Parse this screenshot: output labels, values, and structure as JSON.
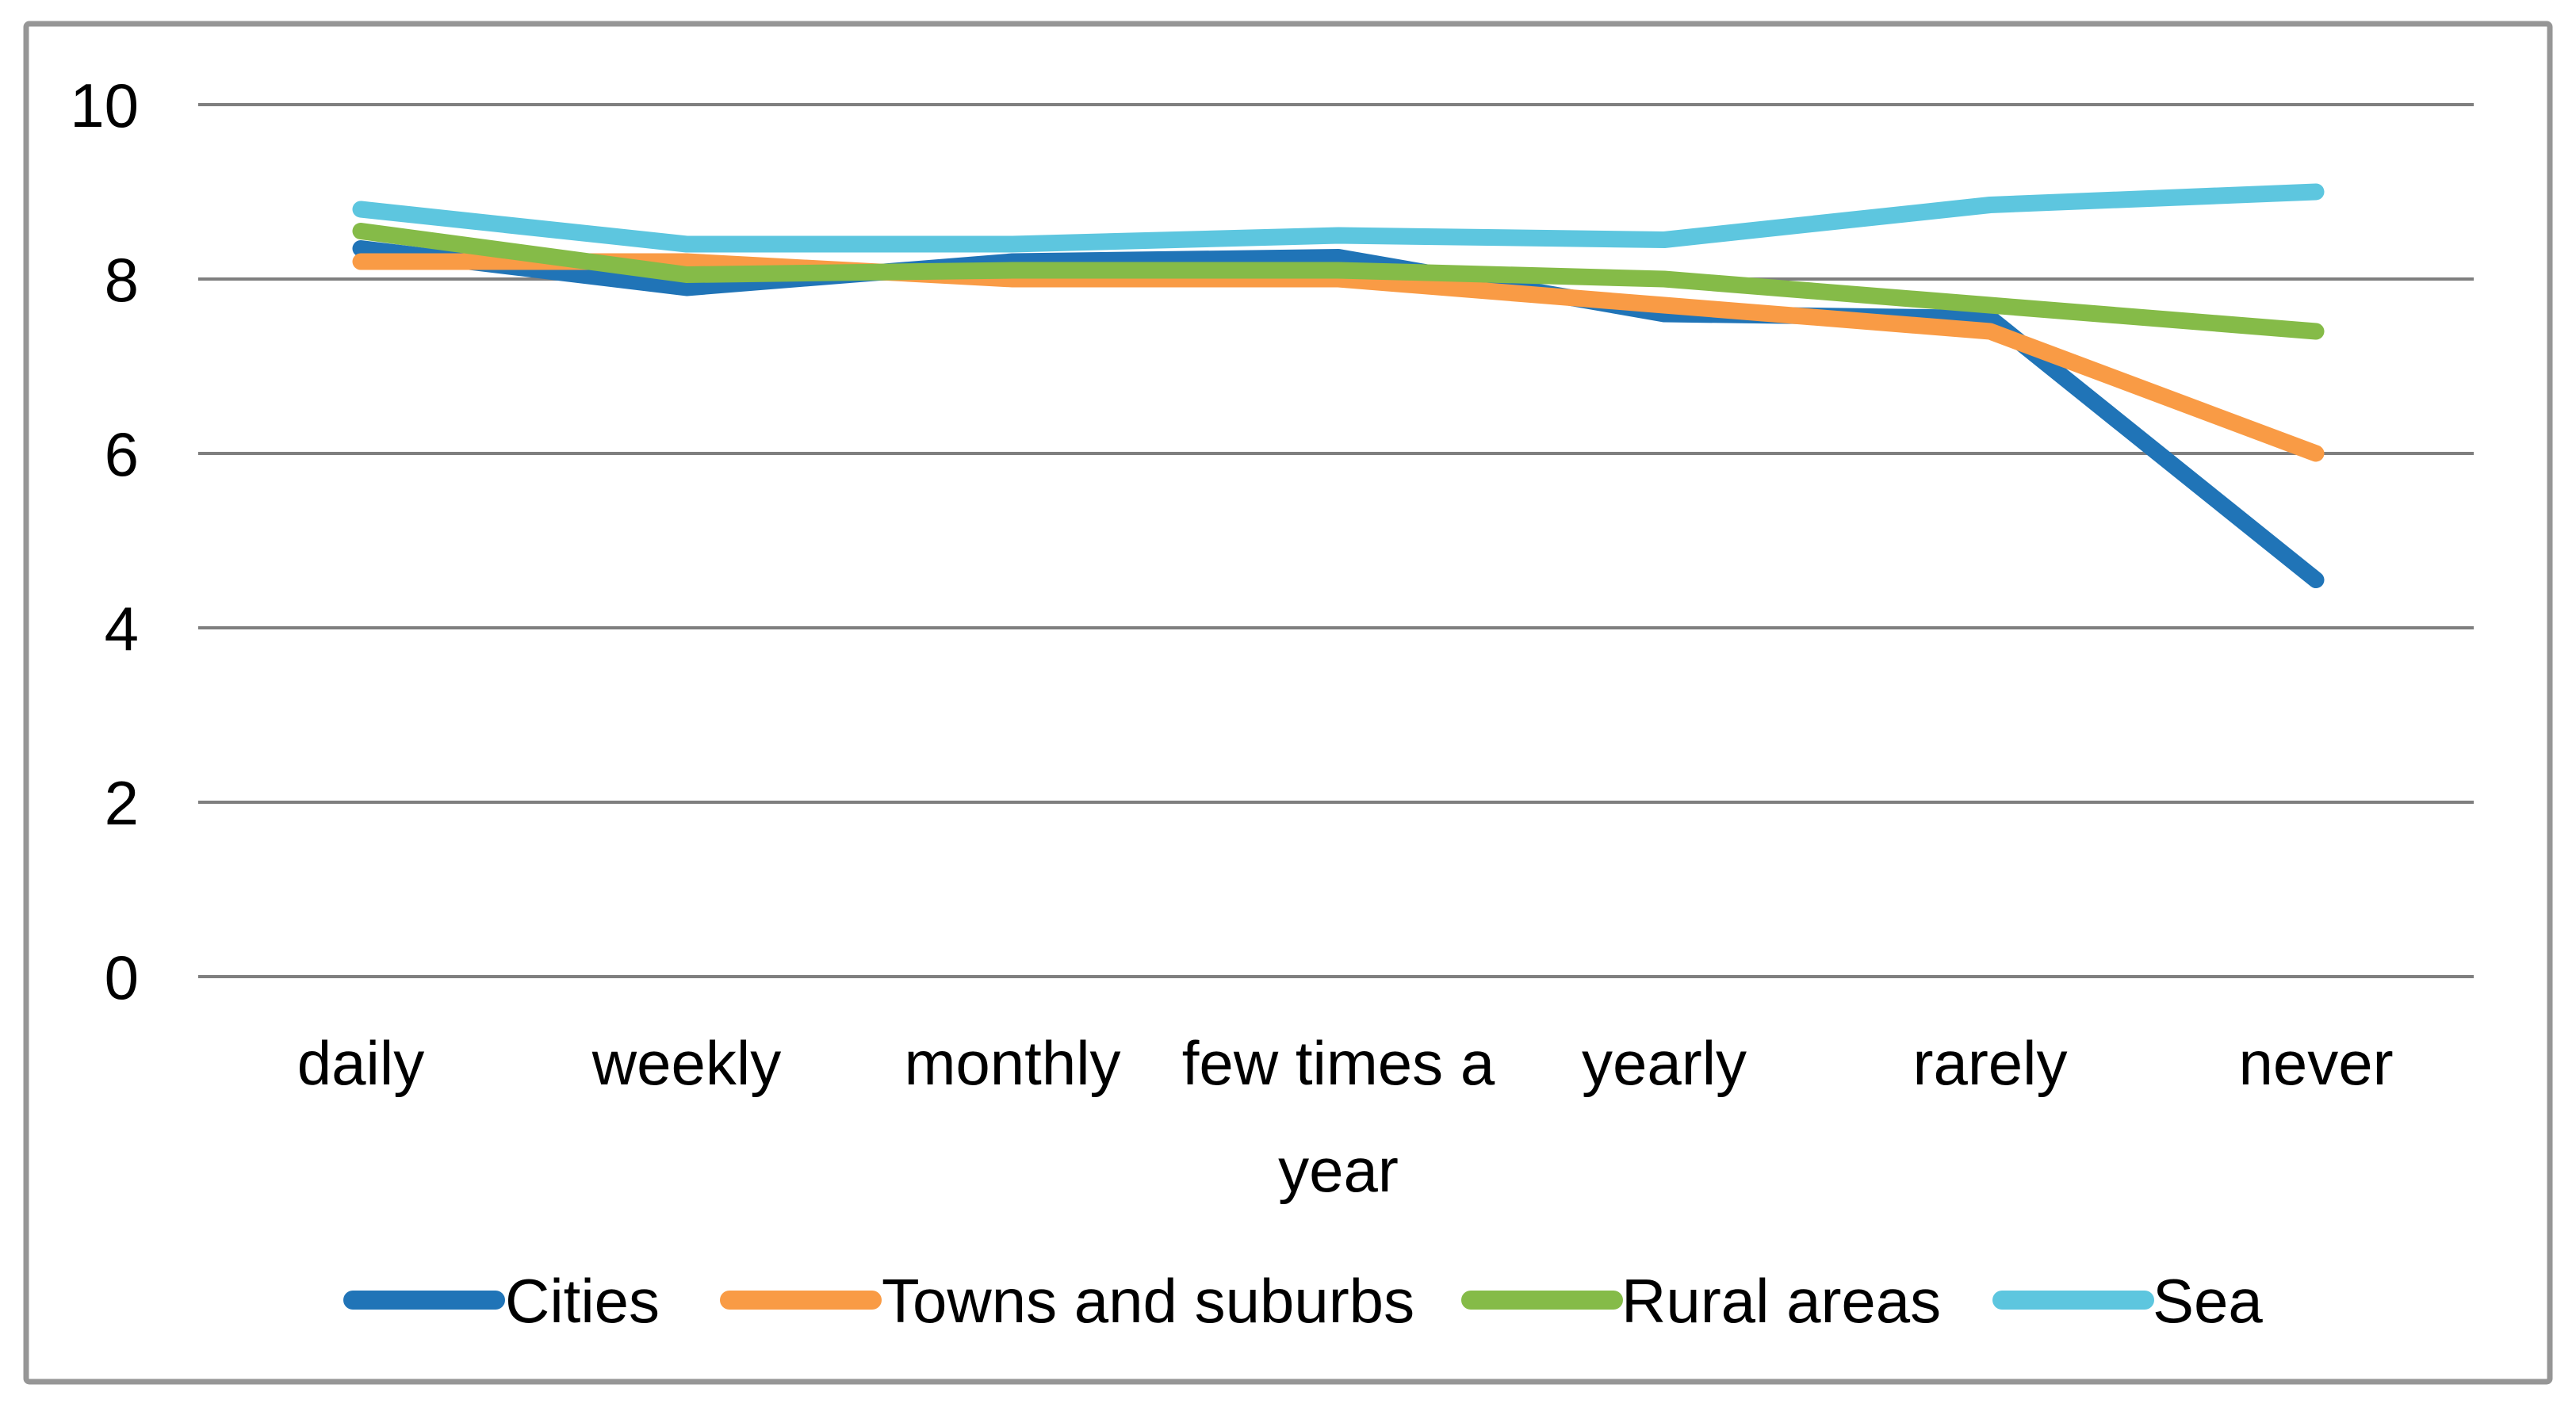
{
  "chart_data": {
    "type": "line",
    "title": "",
    "xlabel": "",
    "ylabel": "",
    "categories": [
      "daily",
      "weekly",
      "monthly",
      "few times a\nyear",
      "yearly",
      "rarely",
      "never"
    ],
    "series": [
      {
        "name": "Cities",
        "color": "#2074B7",
        "values": [
          8.35,
          7.9,
          8.2,
          8.25,
          7.6,
          7.55,
          4.55
        ]
      },
      {
        "name": "Towns and suburbs",
        "color": "#F99B45",
        "values": [
          8.2,
          8.2,
          8.0,
          8.0,
          7.7,
          7.4,
          6.0
        ]
      },
      {
        "name": "Rural areas",
        "color": "#85BB48",
        "values": [
          8.55,
          8.05,
          8.1,
          8.1,
          8.0,
          7.7,
          7.4
        ]
      },
      {
        "name": "Sea",
        "color": "#5DC6DF",
        "values": [
          8.8,
          8.4,
          8.4,
          8.5,
          8.45,
          8.85,
          9.0
        ]
      }
    ],
    "yticks": [
      0,
      2,
      4,
      6,
      8,
      10
    ],
    "ylim": [
      0,
      10
    ],
    "grid": true,
    "legend_position": "bottom",
    "colors": {
      "gridline": "#7F7F7F",
      "frame_border": "#969696",
      "background": "#FFFFFF",
      "text": "#000000"
    }
  }
}
